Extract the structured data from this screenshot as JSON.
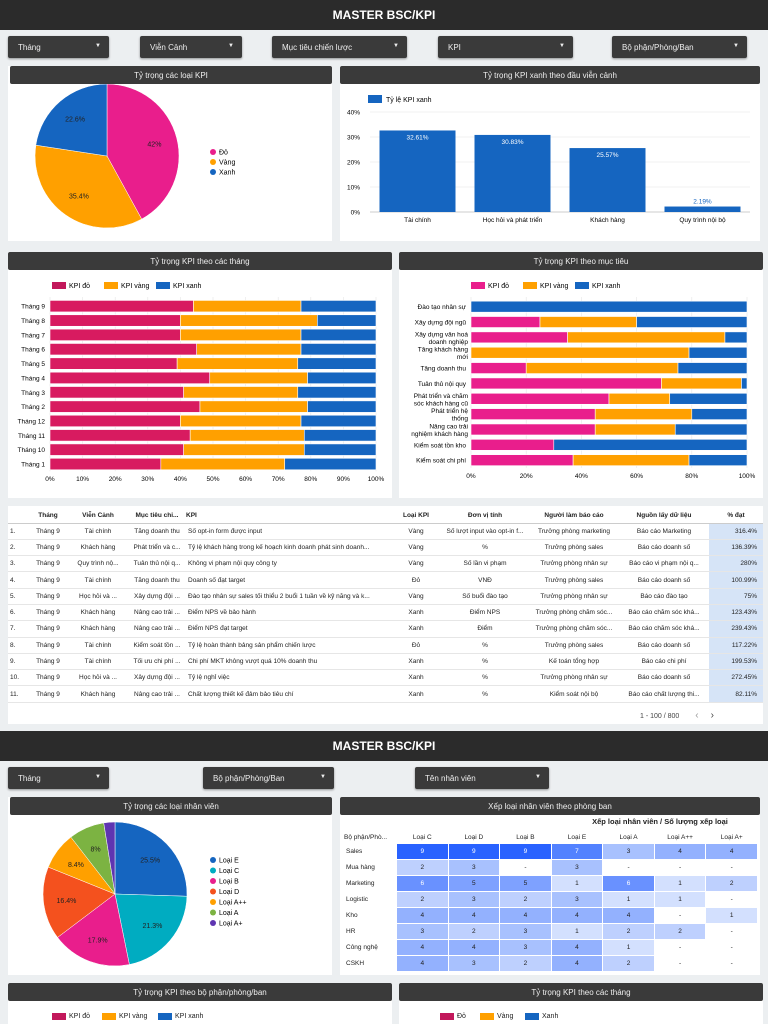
{
  "dashboard1": {
    "title": "MASTER BSC/KPI",
    "filters": [
      "Tháng",
      "Viễn Cảnh",
      "Mục tiêu chiến lược",
      "KPI",
      "Bộ phận/Phòng/Ban"
    ],
    "pie_title": "Tỷ trọng các loại KPI",
    "bar_title": "Tỷ trọng KPI xanh theo đầu viễn cảnh",
    "months_title": "Tỷ trọng KPI theo các tháng",
    "goals_title": "Tỷ trọng KPI theo mục tiêu"
  },
  "dashboard2": {
    "title": "MASTER BSC/KPI",
    "filters": [
      "Tháng",
      "Bộ phận/Phòng/Ban",
      "Tên nhân viên"
    ],
    "pie_title": "Tỷ trọng các loại nhân viên",
    "heat_title": "Xếp loại nhân viên theo phòng ban",
    "heat_subtitle": "Xếp loại nhân viên / Số lượng xếp loại",
    "dept_title": "Tỷ trọng KPI theo bộ phận/phòng/ban",
    "month_title": "Tỷ trọng KPI theo các tháng",
    "dept_legend": [
      "KPI đỏ",
      "KPI vàng",
      "KPI xanh"
    ],
    "month_legend": [
      "Đỏ",
      "Vàng",
      "Xanh"
    ]
  },
  "colors": {
    "red": "#e91e8c",
    "orange": "#ffa000",
    "blue": "#1565c0",
    "barblue": "#1565c0"
  },
  "chart_data": [
    {
      "type": "pie",
      "title": "Tỷ trọng các loại KPI",
      "labels": [
        "Đỏ",
        "Vàng",
        "Xanh"
      ],
      "values": [
        42,
        35.4,
        22.6
      ],
      "value_labels": [
        "42%",
        "35.4%",
        "22.6%"
      ]
    },
    {
      "type": "bar",
      "title": "Tỷ trọng KPI xanh theo đầu viễn cảnh",
      "legend": "Tỷ lệ KPI xanh",
      "categories": [
        "Tài chính",
        "Học hỏi và phát triển",
        "Khách hàng",
        "Quy trình nội bộ"
      ],
      "values": [
        32.61,
        30.83,
        25.57,
        2.19
      ],
      "value_labels": [
        "32.61%",
        "30.83%",
        "25.57%",
        "2.19%"
      ],
      "yticks": [
        "0%",
        "10%",
        "20%",
        "30%",
        "40%"
      ],
      "ylim": [
        0,
        40
      ]
    },
    {
      "type": "bar",
      "title": "Tỷ trọng KPI theo các tháng",
      "orientation": "horizontal-stacked-100",
      "legend": [
        "KPI đỏ",
        "KPI vàng",
        "KPI xanh"
      ],
      "categories": [
        "Tháng 9",
        "Tháng 8",
        "Tháng 7",
        "Tháng 6",
        "Tháng 5",
        "Tháng 4",
        "Tháng 3",
        "Tháng 2",
        "Tháng 12",
        "Tháng 11",
        "Tháng 10",
        "Tháng 1"
      ],
      "series": [
        {
          "name": "KPI đỏ",
          "values": [
            44,
            40,
            40,
            45,
            39,
            49,
            41,
            46,
            40,
            43,
            41,
            34
          ]
        },
        {
          "name": "KPI vàng",
          "values": [
            33,
            42,
            37,
            32,
            37,
            30,
            35,
            33,
            37,
            35,
            37,
            38
          ]
        },
        {
          "name": "KPI xanh",
          "values": [
            23,
            18,
            23,
            23,
            24,
            21,
            24,
            21,
            23,
            22,
            22,
            28
          ]
        }
      ],
      "xticks": [
        "0%",
        "10%",
        "20%",
        "30%",
        "40%",
        "50%",
        "60%",
        "70%",
        "80%",
        "90%",
        "100%"
      ]
    },
    {
      "type": "bar",
      "title": "Tỷ trọng KPI theo mục tiêu",
      "orientation": "horizontal-stacked-100",
      "legend": [
        "KPI đỏ",
        "KPI vàng",
        "KPI xanh"
      ],
      "categories": [
        "Đào tạo nhân sự",
        "Xây dựng đội ngũ",
        "Xây dựng văn hoá doanh nghiệp",
        "Tăng khách hàng mới",
        "Tăng doanh thu",
        "Tuân thủ nội quy",
        "Phát triển và chăm sóc khách hàng cũ",
        "Phát triển hệ thống",
        "Nâng cao trải nghiệm khách hàng",
        "Kiểm soát tồn kho",
        "Kiểm soát chi phí"
      ],
      "series": [
        {
          "name": "KPI đỏ",
          "values": [
            0,
            25,
            35,
            0,
            20,
            69,
            50,
            45,
            45,
            30,
            37
          ]
        },
        {
          "name": "KPI vàng",
          "values": [
            0,
            35,
            57,
            79,
            55,
            29,
            22,
            35,
            29,
            0,
            42
          ]
        },
        {
          "name": "KPI xanh",
          "values": [
            100,
            40,
            8,
            21,
            25,
            2,
            28,
            20,
            26,
            70,
            21
          ]
        }
      ],
      "xticks": [
        "0%",
        "20%",
        "40%",
        "60%",
        "80%",
        "100%"
      ]
    },
    {
      "type": "pie",
      "title": "Tỷ trọng các loại nhân viên",
      "labels": [
        "Loại E",
        "Loại C",
        "Loại B",
        "Loại D",
        "Loại A++",
        "Loại A",
        "Loại A+"
      ],
      "values": [
        25.5,
        21.3,
        17.9,
        16.4,
        8.4,
        8,
        2.5
      ],
      "value_labels": [
        "25.5%",
        "21.3%",
        "17.9%",
        "16.4%",
        "8.4%",
        "8%",
        ""
      ],
      "colors": [
        "#1565c0",
        "#00acc1",
        "#e91e8c",
        "#f4511e",
        "#ffa000",
        "#7cb342",
        "#5e35b1"
      ]
    },
    {
      "type": "table",
      "title": "Xếp loại nhân viên theo phòng ban",
      "columns": [
        "Bộ phận/Phò...",
        "Loại C",
        "Loại D",
        "Loại B",
        "Loại E",
        "Loại A",
        "Loại A++",
        "Loại A+"
      ],
      "rows": [
        [
          "Sales",
          "9",
          "9",
          "9",
          "7",
          "3",
          "4",
          "4"
        ],
        [
          "Mua hàng",
          "2",
          "3",
          "-",
          "3",
          "-",
          "-",
          "-"
        ],
        [
          "Marketing",
          "6",
          "5",
          "5",
          "1",
          "6",
          "1",
          "2"
        ],
        [
          "Logistic",
          "2",
          "3",
          "2",
          "3",
          "1",
          "1",
          "-"
        ],
        [
          "Kho",
          "4",
          "4",
          "4",
          "4",
          "4",
          "-",
          "1"
        ],
        [
          "HR",
          "3",
          "2",
          "3",
          "1",
          "2",
          "2",
          "-"
        ],
        [
          "Công nghệ",
          "4",
          "4",
          "3",
          "4",
          "1",
          "-",
          "-"
        ],
        [
          "CSKH",
          "4",
          "3",
          "2",
          "4",
          "2",
          "-",
          "-"
        ]
      ]
    }
  ],
  "table": {
    "headers": [
      "",
      "Tháng",
      "Viễn Cảnh",
      "Mục tiêu chi...",
      "KPI",
      "Loại KPI",
      "Đơn vị tính",
      "Người làm báo cáo",
      "Nguồn lấy dữ liệu",
      "% đạt"
    ],
    "rows": [
      [
        "1.",
        "Tháng 9",
        "Tài chính",
        "Tăng doanh thu",
        "Số opt-in form được input",
        "Vàng",
        "Số lượt input vào opt-in f...",
        "Trưởng phòng marketing",
        "Báo cáo Marketing",
        "316.4%"
      ],
      [
        "2.",
        "Tháng 9",
        "Khách hàng",
        "Phát triển và c...",
        "Tỷ lệ khách hàng trong kế hoạch kinh doanh phát sinh doanh...",
        "Vàng",
        "%",
        "Trưởng phòng sales",
        "Báo cáo doanh số",
        "136.39%"
      ],
      [
        "3.",
        "Tháng 9",
        "Quy trình nộ...",
        "Tuân thủ nội q...",
        "Không vi phạm nội quy công ty",
        "Vàng",
        "Số lần vi phạm",
        "Trưởng phòng nhân sự",
        "Báo cáo vi phạm nội q...",
        "280%"
      ],
      [
        "4.",
        "Tháng 9",
        "Tài chính",
        "Tăng doanh thu",
        "Doanh số đạt target",
        "Đỏ",
        "VNĐ",
        "Trưởng phòng sales",
        "Báo cáo doanh số",
        "100.99%"
      ],
      [
        "5.",
        "Tháng 9",
        "Học hỏi và ...",
        "Xây dựng đội ...",
        "Đào tạo nhân sự sales tối thiểu 2 buổi 1 tuần về kỹ năng và k...",
        "Vàng",
        "Số buổi đào tạo",
        "Trưởng phòng nhân sự",
        "Báo cáo đào tạo",
        "75%"
      ],
      [
        "6.",
        "Tháng 9",
        "Khách hàng",
        "Nâng cao trải ...",
        "Điểm NPS về bảo hành",
        "Xanh",
        "Điểm NPS",
        "Trưởng phòng chăm sóc...",
        "Báo cáo chăm sóc khá...",
        "123.43%"
      ],
      [
        "7.",
        "Tháng 9",
        "Khách hàng",
        "Nâng cao trải ...",
        "Điểm NPS đạt target",
        "Xanh",
        "Điểm",
        "Trưởng phòng chăm sóc...",
        "Báo cáo chăm sóc khá...",
        "239.43%"
      ],
      [
        "8.",
        "Tháng 9",
        "Tài chính",
        "Kiểm soát tồn ...",
        "Tỷ lệ hoàn thành bảng sản phẩm chiến lược",
        "Đỏ",
        "%",
        "Trưởng phòng sales",
        "Báo cáo doanh số",
        "117.22%"
      ],
      [
        "9.",
        "Tháng 9",
        "Tài chính",
        "Tối ưu chi phí ...",
        "Chi phí MKT không vượt quá 10% doanh thu",
        "Xanh",
        "%",
        "Kế toán tổng hợp",
        "Báo cáo chi phí",
        "199.53%"
      ],
      [
        "10.",
        "Tháng 9",
        "Học hỏi và ...",
        "Xây dựng đội ...",
        "Tỷ lệ nghỉ việc",
        "Xanh",
        "%",
        "Trưởng phòng nhân sự",
        "Báo cáo doanh số",
        "272.45%"
      ],
      [
        "11.",
        "Tháng 9",
        "Khách hàng",
        "Nâng cao trải ...",
        "Chất lượng thiết kế đảm bảo tiêu chí",
        "Xanh",
        "%",
        "Kiểm soát nội bộ",
        "Báo cáo chất lượng thi...",
        "82.11%"
      ]
    ],
    "pager": "1 - 100 / 800"
  }
}
